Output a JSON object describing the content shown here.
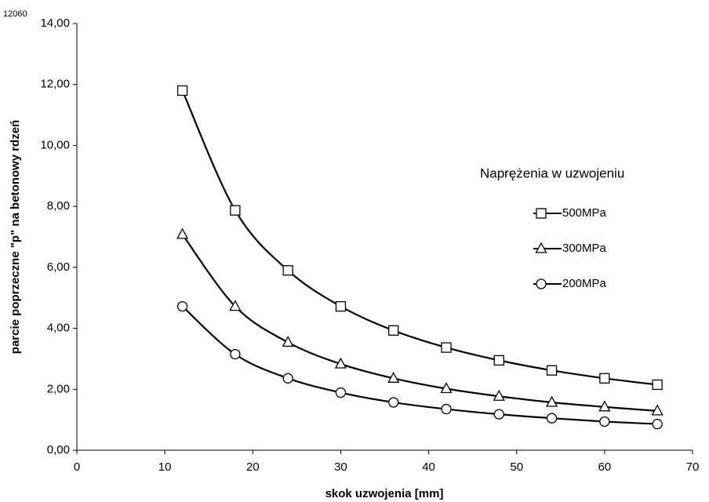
{
  "chart_data": {
    "type": "line",
    "corner_label": "12060",
    "x_label": "skok uzwojenia [mm]",
    "y_label": "parcie poprzeczne \"p\" na betonowy rdzeń",
    "legend_title": "Naprężenia w uzwojeniu",
    "x": [
      12,
      18,
      24,
      30,
      36,
      42,
      48,
      54,
      60,
      66
    ],
    "series": [
      {
        "name": "500MPa",
        "color": "#000000",
        "marker": "square",
        "values": [
          11.8,
          7.87,
          5.9,
          4.72,
          3.93,
          3.37,
          2.95,
          2.62,
          2.36,
          2.15
        ]
      },
      {
        "name": "300MPa",
        "color": "#000000",
        "marker": "triangle",
        "values": [
          7.08,
          4.72,
          3.54,
          2.83,
          2.36,
          2.02,
          1.77,
          1.57,
          1.42,
          1.29
        ]
      },
      {
        "name": "200MPa",
        "color": "#000000",
        "marker": "circle",
        "values": [
          4.72,
          3.15,
          2.36,
          1.89,
          1.57,
          1.35,
          1.18,
          1.05,
          0.94,
          0.86
        ]
      }
    ],
    "xlim": [
      0,
      70
    ],
    "xticks": [
      0,
      10,
      20,
      30,
      40,
      50,
      60,
      70
    ],
    "ylim": [
      0,
      14
    ],
    "yticks": [
      {
        "value": 0,
        "label": "0,00"
      },
      {
        "value": 2,
        "label": "2,00"
      },
      {
        "value": 4,
        "label": "4,00"
      },
      {
        "value": 6,
        "label": "6,00"
      },
      {
        "value": 8,
        "label": "8,00"
      },
      {
        "value": 10,
        "label": "10,00"
      },
      {
        "value": 12,
        "label": "12,00"
      },
      {
        "value": 14,
        "label": "14,00"
      }
    ],
    "smooth": true
  }
}
